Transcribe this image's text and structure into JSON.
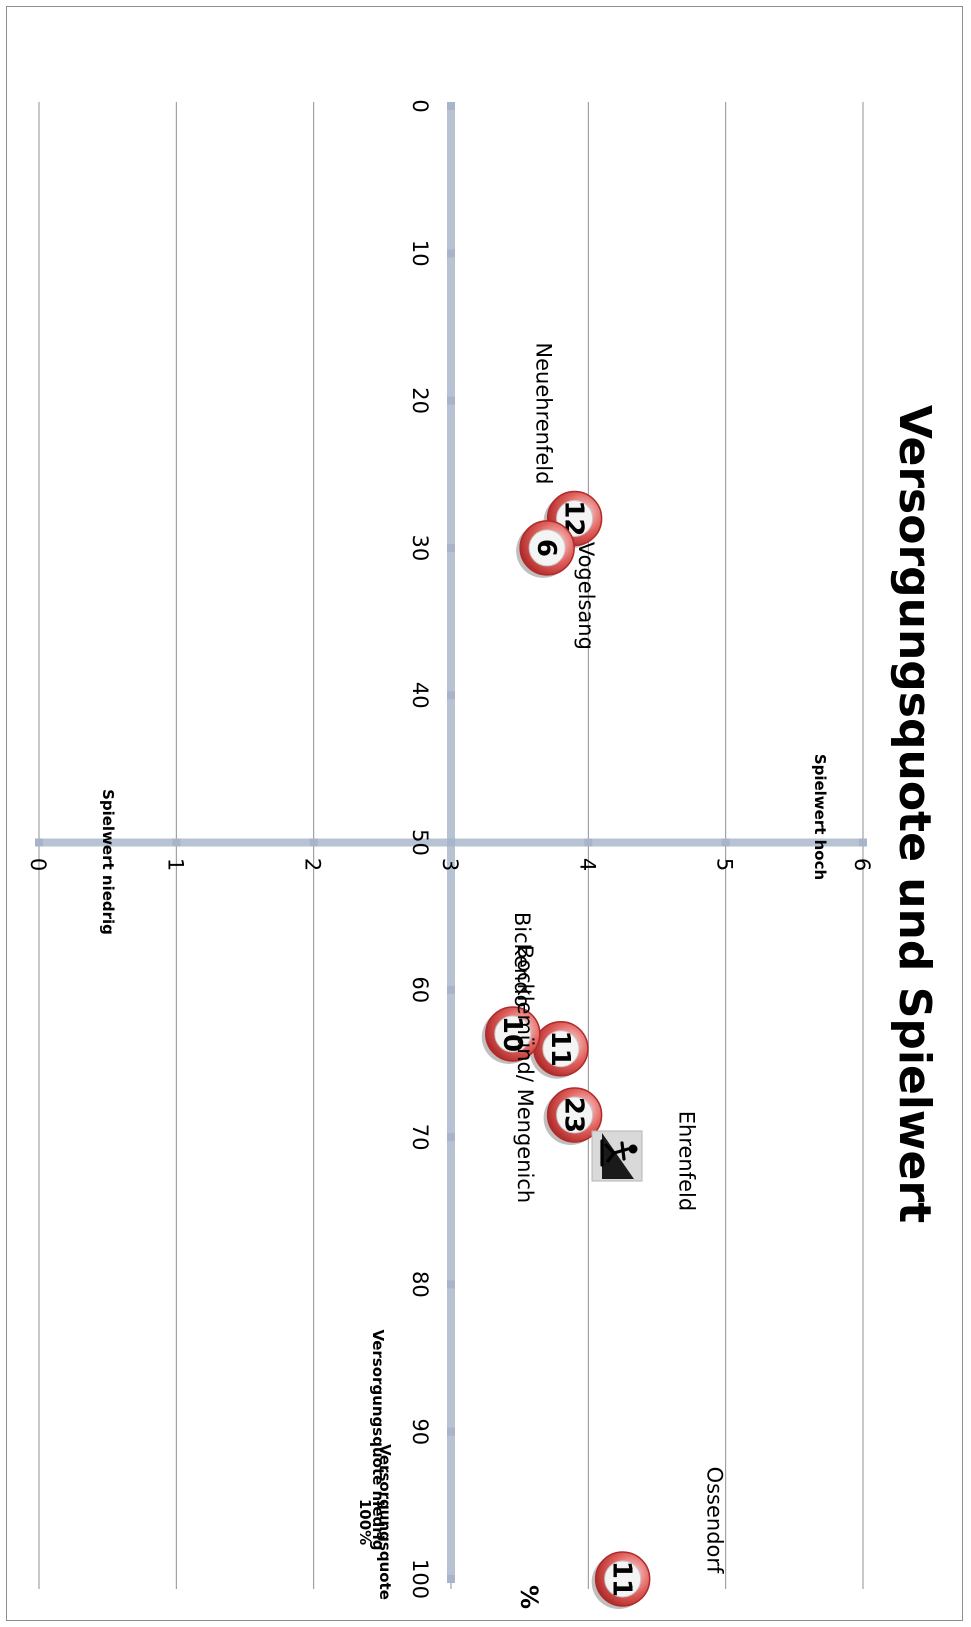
{
  "chart_data": {
    "type": "scatter",
    "title": "Versorgungsquote und Spielwert",
    "x_unit": "%",
    "xlim": [
      0,
      100
    ],
    "ylim": [
      0,
      6
    ],
    "x_ticks": [
      "0",
      "10",
      "20",
      "30",
      "40",
      "50",
      "60",
      "70",
      "80",
      "90",
      "100"
    ],
    "y_ticks": [
      "0",
      "1",
      "2",
      "3",
      "4",
      "5",
      "6"
    ],
    "cross_at": {
      "x": 50,
      "y": 3
    },
    "grid": "horizontal",
    "corner_labels": {
      "spielwert_hoch": "Spielwert hoch",
      "spielwert_niedrig": "Spielwert niedrig",
      "versorgung_niedrig": "Versorgungsquote niedrig",
      "versorgung_100_line1": "Versorgungsquote",
      "versorgung_100_line2": "100%"
    },
    "points": [
      {
        "name": "Neuehrenfeld",
        "x": 28,
        "y": 3.9,
        "count": "12"
      },
      {
        "name": "Vogelsang",
        "x": 30,
        "y": 3.7,
        "count": "6"
      },
      {
        "name": "Bickendorf",
        "x": 64,
        "y": 3.8,
        "count": "11"
      },
      {
        "name": "Bocklemünd/ Mengenich",
        "x": 63,
        "y": 3.45,
        "count": "10"
      },
      {
        "name": "Ehrenfeld",
        "x": 68.5,
        "y": 3.9,
        "count": "23"
      },
      {
        "name": "Ossendorf",
        "x": 100,
        "y": 4.25,
        "count": "11"
      }
    ],
    "marker": {
      "fill": "#f4f4f4",
      "ring": "#d9534f",
      "ring_dark": "#b02a2a"
    }
  }
}
